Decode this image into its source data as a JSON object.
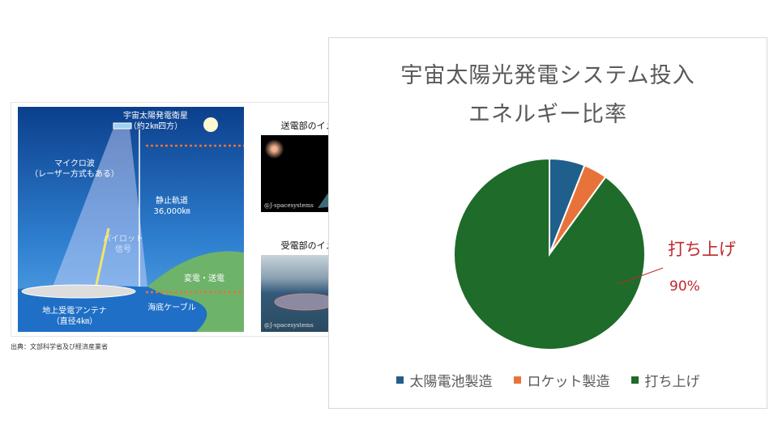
{
  "illustration": {
    "satellite": "宇宙太陽発電衛星",
    "satellite_size": "（約2㎞四方）",
    "microwave": "マイクロ波",
    "laser_note": "（レーザー方式もある）",
    "orbit": "静止軌道",
    "orbit_distance": "36,000㎞",
    "pilot": "パイロット",
    "pilot2": "信号",
    "substation": "変電・送電",
    "cable": "海底ケーブル",
    "antenna": "地上受電アンテナ",
    "antenna_size": "（直径4㎞）",
    "transmit_title": "送電部のイメージ",
    "receive_title": "受電部のイメージ",
    "watermark": "@J-spacesystems",
    "source": "出典：文部科学省及び経済産業省"
  },
  "chart_data": {
    "type": "pie",
    "title": "宇宙太陽光発電システム投入",
    "title2": "エネルギー比率",
    "categories": [
      "太陽電池製造",
      "ロケット製造",
      "打ち上げ"
    ],
    "values": [
      6,
      4,
      90
    ],
    "colors": [
      "#1f5f8b",
      "#e8733a",
      "#1e6b2a"
    ],
    "data_label": {
      "category": "打ち上げ",
      "value": "90%",
      "color": "#c0282d"
    },
    "legend_position": "bottom"
  }
}
